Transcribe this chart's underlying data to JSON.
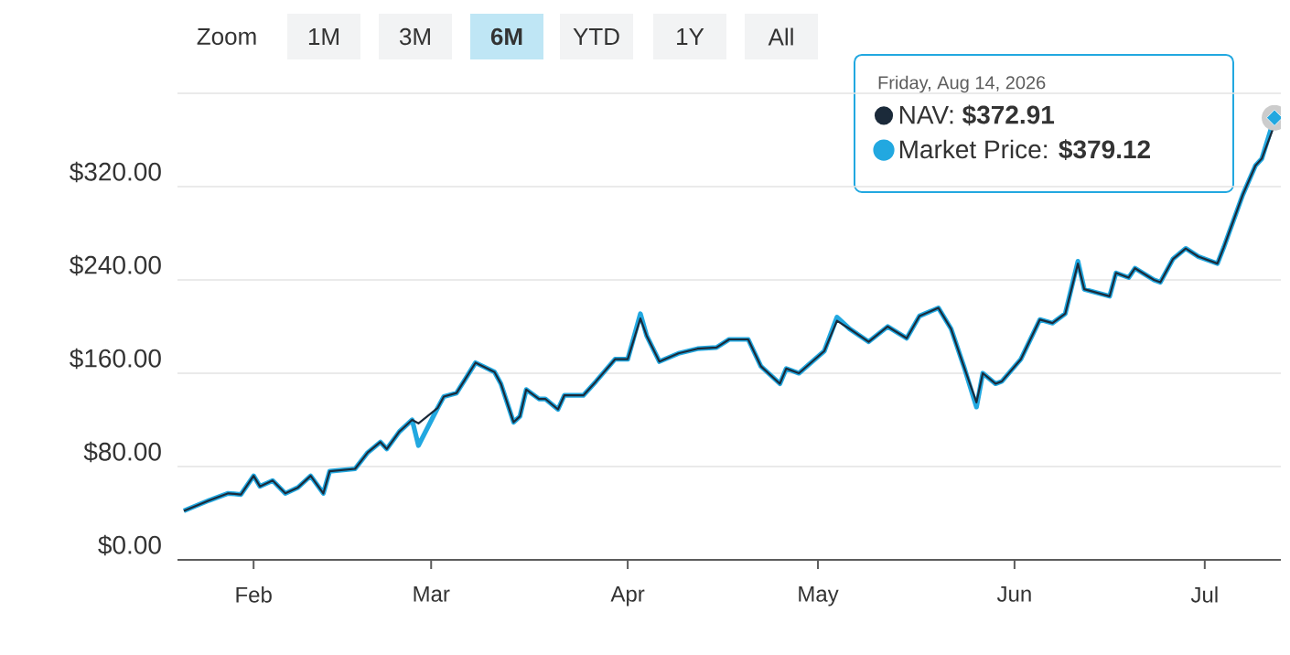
{
  "chart_data": {
    "type": "line",
    "annotations": [
      "Zoom",
      "1M",
      "3M",
      "6M",
      "YTD",
      "1Y",
      "All",
      "Friday, Aug 14, 2026",
      "$372.91",
      "$379.12"
    ],
    "x": [
      "2026-01-21",
      "2026-01-25",
      "2026-01-28",
      "2026-01-30",
      "2026-02-01",
      "2026-02-02",
      "2026-02-04",
      "2026-02-06",
      "2026-02-08",
      "2026-02-10",
      "2026-02-12",
      "2026-02-13",
      "2026-02-17",
      "2026-02-19",
      "2026-02-21",
      "2026-02-22",
      "2026-02-24",
      "2026-02-26",
      "2026-02-27",
      "2026-03-02",
      "2026-03-03",
      "2026-03-05",
      "2026-03-08",
      "2026-03-11",
      "2026-03-12",
      "2026-03-14",
      "2026-03-15",
      "2026-03-16",
      "2026-03-18",
      "2026-03-19",
      "2026-03-21",
      "2026-03-22",
      "2026-03-25",
      "2026-03-27",
      "2026-03-30",
      "2026-04-01",
      "2026-04-03",
      "2026-04-04",
      "2026-04-06",
      "2026-04-09",
      "2026-04-12",
      "2026-04-15",
      "2026-04-17",
      "2026-04-20",
      "2026-04-22",
      "2026-04-25",
      "2026-04-26",
      "2026-04-28",
      "2026-05-02",
      "2026-05-04",
      "2026-05-06",
      "2026-05-09",
      "2026-05-12",
      "2026-05-15",
      "2026-05-17",
      "2026-05-20",
      "2026-05-22",
      "2026-05-24",
      "2026-05-26",
      "2026-05-27",
      "2026-05-29",
      "2026-05-30",
      "2026-06-02",
      "2026-06-05",
      "2026-06-07",
      "2026-06-09",
      "2026-06-11",
      "2026-06-12",
      "2026-06-16",
      "2026-06-17",
      "2026-06-19",
      "2026-06-20",
      "2026-06-23",
      "2026-06-24",
      "2026-06-26",
      "2026-06-28",
      "2026-06-30",
      "2026-07-03",
      "2026-07-04",
      "2026-07-07",
      "2026-07-09",
      "2026-07-10",
      "2026-07-12"
    ],
    "series": [
      {
        "name": "NAV:",
        "color": "#1b2a3a",
        "values": [
          42,
          51,
          57,
          56,
          72,
          63,
          68,
          57,
          62,
          72,
          57,
          76,
          78,
          92,
          101,
          95,
          110,
          120,
          117,
          130,
          140,
          143,
          169,
          161,
          151,
          118,
          123,
          146,
          138,
          138,
          129,
          141,
          141,
          153,
          172,
          172,
          207,
          192,
          170,
          177,
          181,
          182,
          189,
          189,
          166,
          151,
          164,
          160,
          179,
          205,
          198,
          187,
          200,
          190,
          209,
          216,
          198,
          166,
          135,
          160,
          151,
          153,
          172,
          206,
          203,
          211,
          254,
          232,
          226,
          246,
          242,
          250,
          240,
          238,
          258,
          267,
          260,
          254,
          268,
          313,
          338,
          344,
          373
        ]
      },
      {
        "name": "Market Price:",
        "color": "#22a8e0",
        "values": [
          42,
          51,
          57,
          56,
          72,
          63,
          68,
          57,
          62,
          72,
          57,
          76,
          78,
          92,
          101,
          95,
          110,
          120,
          98,
          130,
          140,
          143,
          169,
          161,
          151,
          118,
          123,
          146,
          138,
          138,
          129,
          141,
          141,
          153,
          172,
          172,
          211,
          192,
          170,
          177,
          181,
          182,
          189,
          189,
          166,
          151,
          164,
          160,
          179,
          208,
          198,
          187,
          200,
          190,
          209,
          216,
          198,
          166,
          131,
          160,
          151,
          153,
          172,
          206,
          203,
          211,
          256,
          232,
          226,
          246,
          242,
          250,
          240,
          238,
          258,
          267,
          260,
          254,
          268,
          313,
          338,
          344,
          379
        ]
      }
    ],
    "xlim": [
      "2026-01-20",
      "2026-07-13"
    ],
    "xticks": [
      {
        "value": "2026-02-01",
        "label": "Feb"
      },
      {
        "value": "2026-03-01",
        "label": "Mar"
      },
      {
        "value": "2026-04-01",
        "label": "Apr"
      },
      {
        "value": "2026-05-01",
        "label": "May"
      },
      {
        "value": "2026-06-01",
        "label": "Jun"
      },
      {
        "value": "2026-07-01",
        "label": "Jul"
      }
    ],
    "ylim": [
      0,
      400
    ],
    "yticks": [
      {
        "value": 0,
        "label": "$0.00"
      },
      {
        "value": 80,
        "label": "$80.00"
      },
      {
        "value": 160,
        "label": "$160.00"
      },
      {
        "value": 240,
        "label": "$240.00"
      },
      {
        "value": 320,
        "label": "$320.00"
      },
      {
        "value": 400,
        "label": null
      }
    ],
    "grid": "y",
    "legend": "top right",
    "marker": "none",
    "line_style": "solid"
  }
}
